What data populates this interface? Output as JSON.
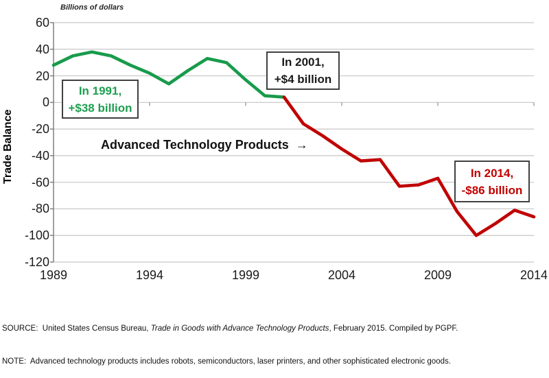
{
  "header": {
    "units_label": "Billions of dollars"
  },
  "y_axis": {
    "title": "Trade Balance",
    "ticks": [
      60,
      40,
      20,
      0,
      -20,
      -40,
      -60,
      -80,
      -100,
      -120
    ],
    "max": 60,
    "min": -120
  },
  "x_axis": {
    "tick_years": [
      1989,
      1994,
      1999,
      2004,
      2009,
      2014
    ],
    "zero_line_tick_years": [
      1994,
      1999,
      2004,
      2009,
      2014
    ],
    "min": 1989,
    "max": 2014
  },
  "chart_data": {
    "type": "line",
    "title": "",
    "xlabel": "",
    "ylabel": "Trade Balance",
    "units": "Billions of dollars",
    "ylim": [
      -120,
      60
    ],
    "x_range": [
      1989,
      2014
    ],
    "grid": true,
    "legend": "none",
    "x": [
      1989,
      1990,
      1991,
      1992,
      1993,
      1994,
      1995,
      1996,
      1997,
      1998,
      1999,
      2000,
      2001,
      2002,
      2003,
      2004,
      2005,
      2006,
      2007,
      2008,
      2009,
      2010,
      2011,
      2012,
      2013,
      2014
    ],
    "values": [
      28,
      35,
      38,
      35,
      28,
      22,
      14,
      24,
      33,
      30,
      17,
      5,
      4,
      -16,
      -25,
      -35,
      -44,
      -43,
      -63,
      -62,
      -57,
      -82,
      -100,
      -91,
      -81,
      -86
    ],
    "series": [
      {
        "name": "surplus-era-green",
        "color": "#189B4C",
        "x": [
          1989,
          1990,
          1991,
          1992,
          1993,
          1994,
          1995,
          1996,
          1997,
          1998,
          1999,
          2000,
          2001
        ],
        "values": [
          28,
          35,
          38,
          35,
          28,
          22,
          14,
          24,
          33,
          30,
          17,
          5,
          4
        ]
      },
      {
        "name": "deficit-era-red",
        "color": "#C00000",
        "x": [
          2001,
          2002,
          2003,
          2004,
          2005,
          2006,
          2007,
          2008,
          2009,
          2010,
          2011,
          2012,
          2013,
          2014
        ],
        "values": [
          4,
          -16,
          -25,
          -35,
          -44,
          -43,
          -63,
          -62,
          -57,
          -82,
          -100,
          -91,
          -81,
          -86
        ]
      }
    ]
  },
  "center_label": {
    "text": "Advanced Technology Products",
    "arrow": "→"
  },
  "annotations": {
    "in_1991": {
      "line1": "In 1991,",
      "line2": "+$38 billion",
      "color": "#1E9E50"
    },
    "in_2001": {
      "line1": "In 2001,",
      "line2": "+$4 billion",
      "color": "#1A1A1A"
    },
    "in_2014": {
      "line1": "In 2014,",
      "line2": "-$86 billion",
      "color": "#C00000"
    }
  },
  "footer": {
    "source_prefix": "SOURCE:  United States Census Bureau, ",
    "source_italic": "Trade in Goods with Advance Technology Products",
    "source_suffix": ", February 2015. Compiled by PGPF.",
    "note": "NOTE:  Advanced technology products includes robots, semiconductors, laser printers, and other sophisticated electronic goods."
  }
}
